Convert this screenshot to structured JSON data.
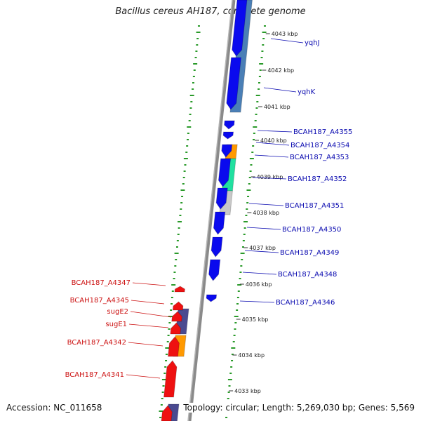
{
  "title": "Bacillus cereus AH187, complete genome",
  "footer": {
    "accession": "Accession: NC_011658",
    "summary": "Topology: circular; Length: 5,269,030 bp; Genes: 5,569"
  },
  "scale": {
    "kbp_ticks": [
      "4043 kbp",
      "4042 kbp",
      "4041 kbp",
      "4040 kbp",
      "4039 kbp",
      "4038 kbp",
      "4037 kbp",
      "4036 kbp",
      "4035 kbp",
      "4034 kbp",
      "4033 kbp"
    ]
  },
  "genes_right": [
    {
      "label": "yqhJ"
    },
    {
      "label": "yqhK"
    },
    {
      "label": "BCAH187_A4355"
    },
    {
      "label": "BCAH187_A4354"
    },
    {
      "label": "BCAH187_A4353"
    },
    {
      "label": "BCAH187_A4352"
    },
    {
      "label": "BCAH187_A4351"
    },
    {
      "label": "BCAH187_A4350"
    },
    {
      "label": "BCAH187_A4349"
    },
    {
      "label": "BCAH187_A4348"
    },
    {
      "label": "BCAH187_A4346"
    }
  ],
  "genes_left": [
    {
      "label": "BCAH187_A4347"
    },
    {
      "label": "BCAH187_A4345"
    },
    {
      "label": "sugE2"
    },
    {
      "label": "sugE1"
    },
    {
      "label": "BCAH187_A4342"
    },
    {
      "label": "BCAH187_A4341"
    }
  ],
  "colors": {
    "forward_gene": "#0a0aee",
    "reverse_gene": "#ee1111",
    "label_forward": "#0a0ab0",
    "label_reverse": "#cc1111",
    "backbone": "#8a8a8a",
    "gc_dots": "#2a9a2a",
    "cog_blue": "#4a7fb6",
    "cog_orange": "#ff9900",
    "cog_teal": "#20e0a0",
    "cog_grey": "#c8c8c8",
    "cog_purple": "#4a4a90"
  }
}
